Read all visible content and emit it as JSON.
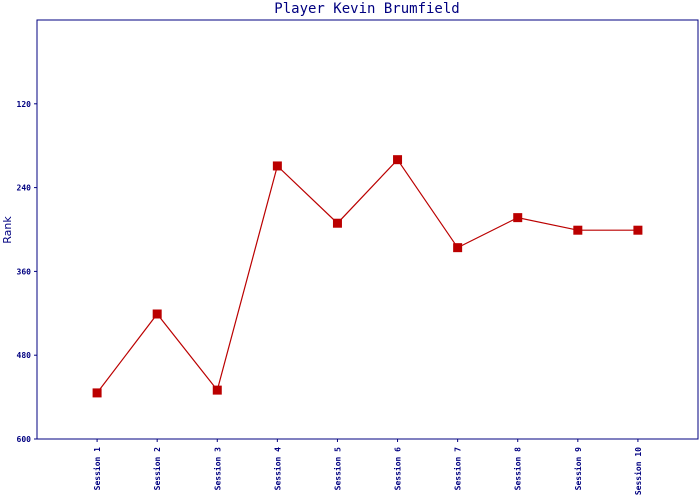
{
  "chart_data": {
    "type": "line",
    "title": "Player Kevin Brumfield",
    "y_label": "Rank",
    "categories": [
      "Session 1",
      "Session 2",
      "Session 3",
      "Session 4",
      "Session 5",
      "Session 6",
      "Session 7",
      "Session 8",
      "Session 9",
      "Session 10"
    ],
    "series": [
      {
        "color": "#bb0000",
        "values": [
          534,
          421,
          530,
          209,
          291,
          200,
          326,
          283,
          301,
          301
        ]
      }
    ],
    "ylim": [
      600,
      0
    ],
    "yticks": [
      120,
      240,
      360,
      480,
      600
    ]
  }
}
